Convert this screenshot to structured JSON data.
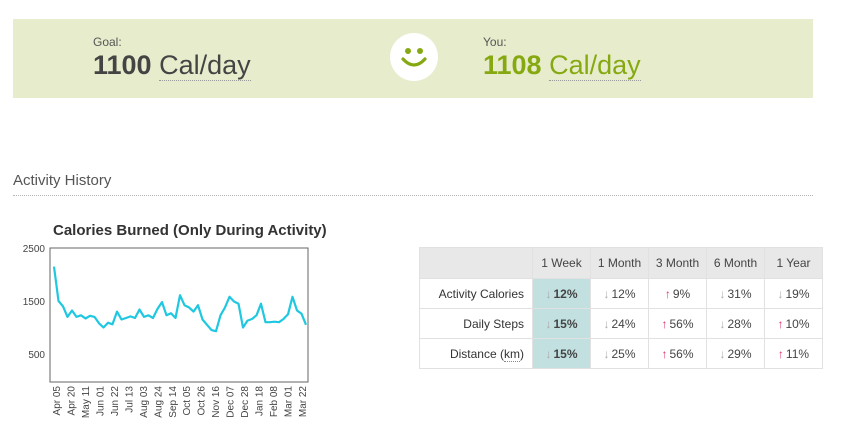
{
  "goal": {
    "label": "Goal:",
    "value": "1100",
    "unit": "Cal/day"
  },
  "you": {
    "label": "You:",
    "value": "1108",
    "unit": "Cal/day"
  },
  "smiley_icon": "smiley-face-icon",
  "colors": {
    "accent_green": "#86a912",
    "banner_bg": "#e7edcc",
    "line": "#1fc8e0",
    "up_arrow": "#e0306a",
    "down_arrow": "#aaaaaa",
    "highlight_col": "#c2e0e0"
  },
  "section": {
    "title": "Activity History"
  },
  "chart_data": {
    "type": "line",
    "title": "Calories Burned (Only During Activity)",
    "xlabel": "",
    "ylabel": "",
    "ylim": [
      0,
      2500
    ],
    "yticks": [
      "2500",
      "1500",
      "500"
    ],
    "ytick_values": [
      2500,
      1500,
      500
    ],
    "xtick_labels": [
      "Apr 05",
      "Apr 20",
      "May 11",
      "Jun 01",
      "Jun 22",
      "Jul 13",
      "Aug 03",
      "Aug 24",
      "Sep 14",
      "Oct 05",
      "Oct 26",
      "Nov 16",
      "Dec 07",
      "Dec 28",
      "Jan 18",
      "Feb 08",
      "Mar 01",
      "Mar 22"
    ],
    "grid": false,
    "series": [
      {
        "values": [
          2150,
          1500,
          1400,
          1200,
          1320,
          1200,
          1230,
          1170,
          1220,
          1200,
          1080,
          1000,
          1090,
          1060,
          1300,
          1150,
          1180,
          1210,
          1180,
          1340,
          1200,
          1230,
          1180,
          1350,
          1480,
          1230,
          1270,
          1180,
          1610,
          1420,
          1380,
          1300,
          1420,
          1150,
          1050,
          950,
          930,
          1230,
          1380,
          1580,
          1490,
          1450,
          1000,
          1130,
          1160,
          1230,
          1450,
          1100,
          1100,
          1110,
          1100,
          1160,
          1250,
          1580,
          1320,
          1260,
          1050
        ]
      }
    ]
  },
  "table": {
    "columns": [
      "1 Week",
      "1 Month",
      "3 Month",
      "6 Month",
      "1 Year"
    ],
    "rows": [
      {
        "label": "Activity Calories",
        "cells": [
          {
            "value": "12%",
            "dir": "down"
          },
          {
            "value": "12%",
            "dir": "down"
          },
          {
            "value": "9%",
            "dir": "up"
          },
          {
            "value": "31%",
            "dir": "down"
          },
          {
            "value": "19%",
            "dir": "down"
          }
        ]
      },
      {
        "label": "Daily Steps",
        "cells": [
          {
            "value": "15%",
            "dir": "down"
          },
          {
            "value": "24%",
            "dir": "down"
          },
          {
            "value": "56%",
            "dir": "up"
          },
          {
            "value": "28%",
            "dir": "down"
          },
          {
            "value": "10%",
            "dir": "up"
          }
        ]
      },
      {
        "label_prefix": "Distance (",
        "label_unit": "km",
        "label_suffix": ")",
        "cells": [
          {
            "value": "15%",
            "dir": "down"
          },
          {
            "value": "25%",
            "dir": "down"
          },
          {
            "value": "56%",
            "dir": "up"
          },
          {
            "value": "29%",
            "dir": "down"
          },
          {
            "value": "11%",
            "dir": "up"
          }
        ]
      }
    ]
  }
}
